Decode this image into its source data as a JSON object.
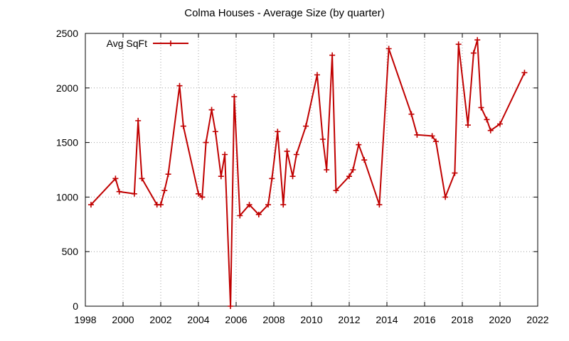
{
  "chart_data": {
    "type": "line",
    "title": "Colma Houses - Average Size (by quarter)",
    "xlabel": "",
    "ylabel": "",
    "xlim": [
      1998,
      2022
    ],
    "ylim": [
      0,
      2500
    ],
    "x_ticks": [
      1998,
      2000,
      2002,
      2004,
      2006,
      2008,
      2010,
      2012,
      2014,
      2016,
      2018,
      2020,
      2022
    ],
    "y_ticks": [
      0,
      500,
      1000,
      1500,
      2000,
      2500
    ],
    "x_tick_labels": [
      "1998",
      "2000",
      "2002",
      "2004",
      "2006",
      "2008",
      "2010",
      "2012",
      "2014",
      "2016",
      "2018",
      "2020",
      "2022"
    ],
    "y_tick_labels": [
      "0",
      "500",
      "1000",
      "1500",
      "2000",
      "2500"
    ],
    "grid": true,
    "legend_position": "top-left",
    "series": [
      {
        "name": "Avg SqFt",
        "color": "#c00000",
        "marker": "plus",
        "points": [
          [
            1998.3,
            930
          ],
          [
            1999.6,
            1170
          ],
          [
            1999.8,
            1050
          ],
          [
            2000.6,
            1030
          ],
          [
            2000.8,
            1700
          ],
          [
            2001.0,
            1170
          ],
          [
            2001.8,
            930
          ],
          [
            2002.0,
            930
          ],
          [
            2002.2,
            1060
          ],
          [
            2002.4,
            1210
          ],
          [
            2003.0,
            2020
          ],
          [
            2003.2,
            1650
          ],
          [
            2004.0,
            1030
          ],
          [
            2004.2,
            1000
          ],
          [
            2004.4,
            1500
          ],
          [
            2004.7,
            1800
          ],
          [
            2004.9,
            1600
          ],
          [
            2005.2,
            1190
          ],
          [
            2005.4,
            1390
          ],
          [
            2005.7,
            0
          ],
          [
            2005.9,
            1920
          ],
          [
            2006.2,
            830
          ],
          [
            2006.7,
            930
          ],
          [
            2007.2,
            840
          ],
          [
            2007.7,
            930
          ],
          [
            2007.9,
            1170
          ],
          [
            2008.2,
            1600
          ],
          [
            2008.5,
            930
          ],
          [
            2008.7,
            1420
          ],
          [
            2009.0,
            1190
          ],
          [
            2009.2,
            1390
          ],
          [
            2009.7,
            1650
          ],
          [
            2010.3,
            2120
          ],
          [
            2010.6,
            1530
          ],
          [
            2010.8,
            1250
          ],
          [
            2011.1,
            2300
          ],
          [
            2011.3,
            1060
          ],
          [
            2012.0,
            1190
          ],
          [
            2012.2,
            1250
          ],
          [
            2012.5,
            1480
          ],
          [
            2012.8,
            1340
          ],
          [
            2013.6,
            930
          ],
          [
            2014.1,
            2360
          ],
          [
            2015.3,
            1760
          ],
          [
            2015.6,
            1570
          ],
          [
            2016.4,
            1560
          ],
          [
            2016.6,
            1510
          ],
          [
            2017.1,
            1000
          ],
          [
            2017.6,
            1220
          ],
          [
            2017.8,
            2400
          ],
          [
            2018.3,
            1660
          ],
          [
            2018.6,
            2320
          ],
          [
            2018.8,
            2440
          ],
          [
            2019.0,
            1820
          ],
          [
            2019.3,
            1710
          ],
          [
            2019.5,
            1610
          ],
          [
            2020.0,
            1670
          ],
          [
            2021.3,
            2140
          ]
        ]
      }
    ]
  }
}
